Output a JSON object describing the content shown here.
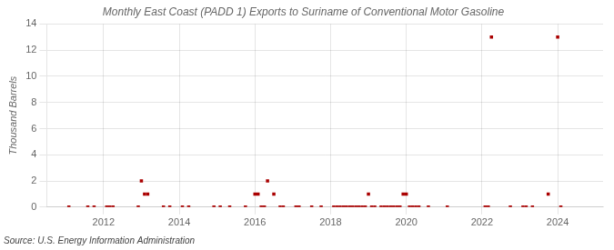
{
  "chart_data": {
    "type": "scatter",
    "title": "Monthly East Coast (PADD 1) Exports to Suriname of Conventional Motor Gasoline",
    "ylabel": "Thousand Barrels",
    "annotation": "Source: U.S. Energy Information Administration",
    "x": [
      2011.0833,
      2011.5833,
      2011.75,
      2012.0833,
      2012.1667,
      2012.25,
      2012.9167,
      2013.0,
      2013.0833,
      2013.1667,
      2013.5833,
      2013.75,
      2014.0833,
      2014.25,
      2014.9167,
      2015.0833,
      2015.3333,
      2015.75,
      2016.0,
      2016.0833,
      2016.1667,
      2016.25,
      2016.3333,
      2016.5,
      2016.6667,
      2016.75,
      2017.0833,
      2017.1667,
      2017.5,
      2017.75,
      2018.0833,
      2018.1667,
      2018.25,
      2018.3333,
      2018.4167,
      2018.5,
      2018.5833,
      2018.6667,
      2018.75,
      2018.8333,
      2018.9167,
      2019.0,
      2019.0833,
      2019.1667,
      2019.3333,
      2019.4167,
      2019.5,
      2019.5833,
      2019.6667,
      2019.75,
      2019.8333,
      2019.9167,
      2020.0,
      2020.0833,
      2020.1667,
      2020.25,
      2020.3333,
      2020.5833,
      2021.0833,
      2022.0833,
      2022.1667,
      2022.25,
      2022.75,
      2023.0833,
      2023.1667,
      2023.3333,
      2023.75,
      2024.0,
      2024.0833
    ],
    "values": [
      0,
      0,
      0,
      0,
      0,
      0,
      0,
      2,
      1,
      1,
      0,
      0,
      0,
      0,
      0,
      0,
      0,
      0,
      1,
      1,
      0,
      0,
      2,
      1,
      0,
      0,
      0,
      0,
      0,
      0,
      0,
      0,
      0,
      0,
      0,
      0,
      0,
      0,
      0,
      0,
      0,
      1,
      0,
      0,
      0,
      0,
      0,
      0,
      0,
      0,
      0,
      1,
      1,
      0,
      0,
      0,
      0,
      0,
      0,
      0,
      0,
      13,
      0,
      0,
      0,
      0,
      1,
      13,
      0
    ],
    "color": "#aa0000",
    "marker": "square",
    "xlim": [
      2010.5,
      2025.2
    ],
    "xticks": [
      2012,
      2014,
      2016,
      2018,
      2020,
      2022,
      2024
    ],
    "ylim": [
      0,
      14
    ],
    "yticks": [
      0,
      2,
      4,
      6,
      8,
      10,
      12,
      14
    ],
    "grid": true
  }
}
